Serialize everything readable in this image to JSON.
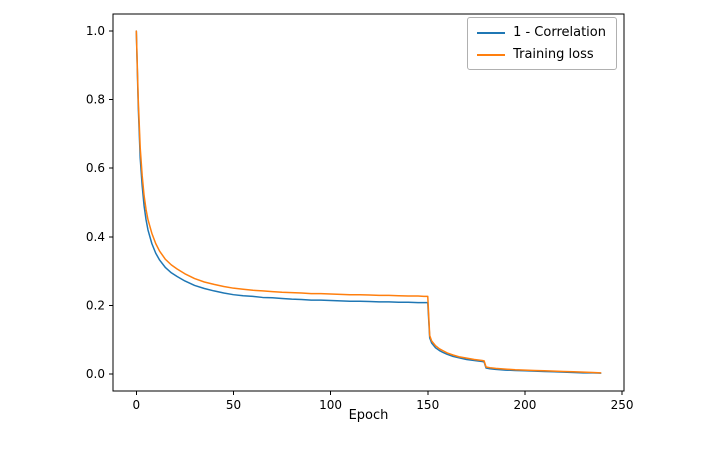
{
  "figure": {
    "background": "#ffffff",
    "axes_edge_color": "#000000",
    "tick_label_color": "#000000"
  },
  "chart_data": {
    "type": "line",
    "title": "",
    "xlabel": "Epoch",
    "ylabel": "",
    "xlim": [
      -12,
      251
    ],
    "ylim": [
      -0.05,
      1.05
    ],
    "xticks": [
      0,
      50,
      100,
      150,
      200,
      250
    ],
    "yticks": [
      0.0,
      0.2,
      0.4,
      0.6,
      0.8,
      1.0
    ],
    "grid": false,
    "legend_position": "upper right",
    "x": [
      0,
      1,
      2,
      3,
      4,
      5,
      6,
      8,
      10,
      12,
      15,
      18,
      21,
      25,
      30,
      35,
      40,
      45,
      50,
      55,
      60,
      65,
      70,
      75,
      80,
      85,
      90,
      95,
      100,
      105,
      110,
      115,
      120,
      125,
      130,
      135,
      140,
      145,
      148,
      150,
      151,
      152,
      154,
      156,
      158,
      160,
      163,
      166,
      170,
      174,
      178,
      179,
      180,
      182,
      185,
      190,
      195,
      200,
      205,
      210,
      215,
      220,
      225,
      230,
      235,
      239
    ],
    "series": [
      {
        "name": "1 - Correlation",
        "color": "#1f77b4",
        "values": [
          1.0,
          0.78,
          0.63,
          0.55,
          0.49,
          0.45,
          0.42,
          0.38,
          0.352,
          0.332,
          0.31,
          0.295,
          0.284,
          0.271,
          0.258,
          0.249,
          0.242,
          0.236,
          0.231,
          0.228,
          0.226,
          0.223,
          0.222,
          0.22,
          0.218,
          0.217,
          0.215,
          0.215,
          0.214,
          0.213,
          0.212,
          0.212,
          0.211,
          0.21,
          0.21,
          0.209,
          0.209,
          0.208,
          0.208,
          0.208,
          0.105,
          0.09,
          0.076,
          0.068,
          0.062,
          0.057,
          0.051,
          0.047,
          0.042,
          0.039,
          0.036,
          0.035,
          0.017,
          0.015,
          0.013,
          0.011,
          0.01,
          0.009,
          0.008,
          0.007,
          0.006,
          0.005,
          0.004,
          0.003,
          0.003,
          0.002
        ]
      },
      {
        "name": "Training loss",
        "color": "#ff7f0e",
        "values": [
          1.0,
          0.8,
          0.66,
          0.58,
          0.52,
          0.48,
          0.45,
          0.41,
          0.38,
          0.358,
          0.334,
          0.318,
          0.306,
          0.292,
          0.278,
          0.268,
          0.261,
          0.255,
          0.25,
          0.247,
          0.244,
          0.242,
          0.24,
          0.238,
          0.237,
          0.236,
          0.234,
          0.234,
          0.233,
          0.232,
          0.231,
          0.231,
          0.23,
          0.229,
          0.229,
          0.228,
          0.227,
          0.227,
          0.226,
          0.226,
          0.112,
          0.096,
          0.082,
          0.073,
          0.067,
          0.061,
          0.055,
          0.05,
          0.046,
          0.042,
          0.039,
          0.038,
          0.02,
          0.018,
          0.016,
          0.014,
          0.012,
          0.011,
          0.01,
          0.009,
          0.008,
          0.007,
          0.006,
          0.005,
          0.004,
          0.003
        ]
      }
    ]
  }
}
